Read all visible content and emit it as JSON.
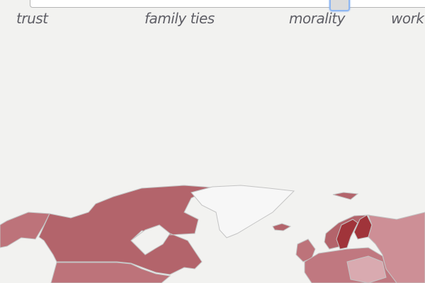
{
  "slider": {
    "labels": [
      "trust",
      "family ties",
      "morality",
      "work"
    ],
    "selected_label": "morality"
  },
  "map": {
    "colors": {
      "background": "#f2f2f0",
      "no_data": "#f7f7f7",
      "high": "#a0343a",
      "mid_high": "#b3646b",
      "mid": "#bd737a",
      "low": "#cd8f96",
      "lowest": "#d9aab0"
    }
  }
}
